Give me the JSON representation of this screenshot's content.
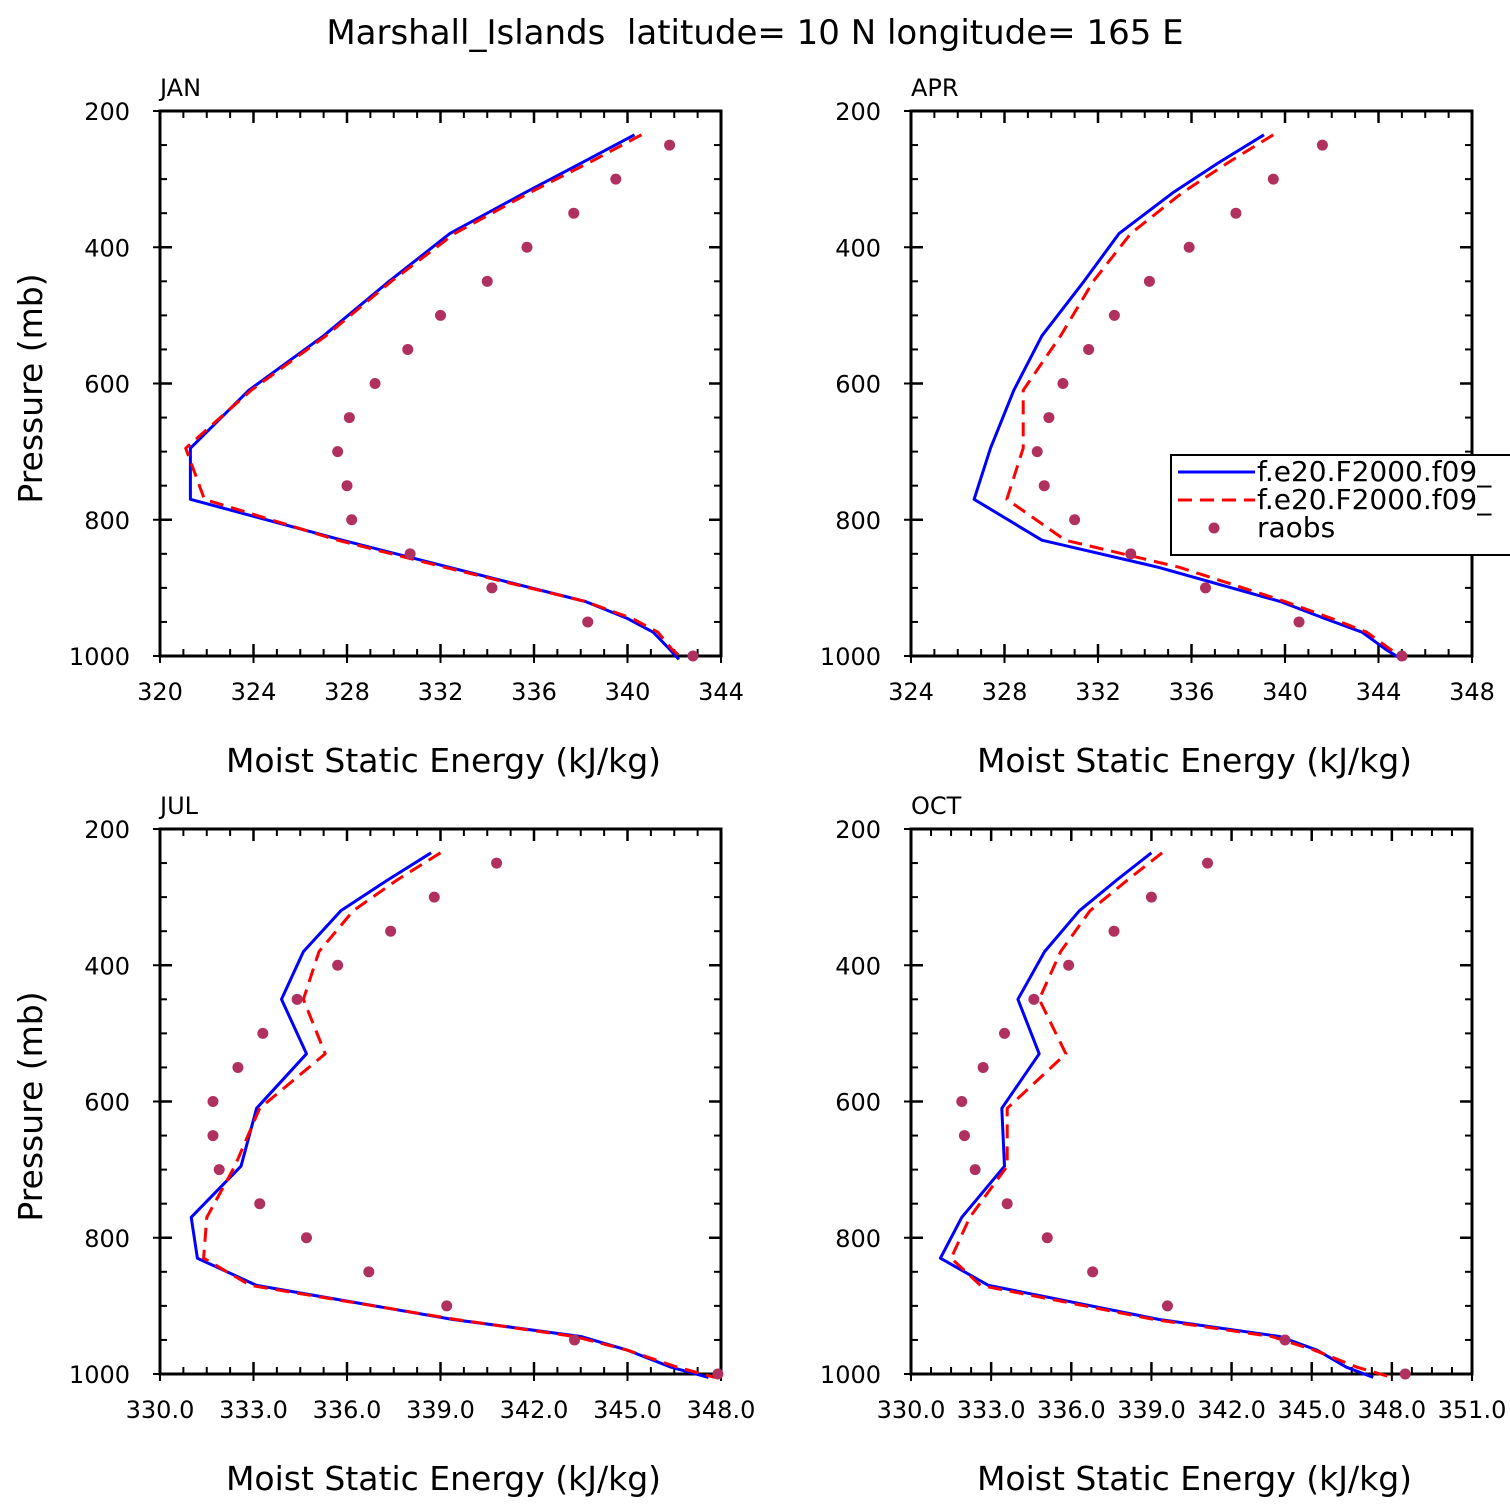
{
  "title": "Marshall_Islands  latitude= 10 N longitude= 165 E",
  "colors": {
    "model1": "#0000ff",
    "model2": "#ff0000",
    "raobs": "#b03060",
    "axis": "#000000"
  },
  "legend": {
    "placement": "right-middle of APR panel",
    "entries": [
      {
        "label": "f.e20.F2000.f09_",
        "style": "solid",
        "color": "#0000ff"
      },
      {
        "label": "f.e20.F2000.f09_",
        "style": "dashed",
        "color": "#ff0000"
      },
      {
        "label": "raobs",
        "style": "dots",
        "color": "#b03060"
      }
    ]
  },
  "chart_data": [
    {
      "type": "line",
      "panel": "JAN",
      "month": "JAN",
      "xlabel": "Moist Static Energy (kJ/kg)",
      "ylabel": "Pressure (mb)",
      "xlim": [
        320,
        344
      ],
      "ylim": [
        200,
        1000
      ],
      "y_reversed": true,
      "xticks": [
        "320",
        "324",
        "328",
        "332",
        "336",
        "340",
        "344"
      ],
      "yticks": [
        "200",
        "400",
        "600",
        "800",
        "1000"
      ],
      "model_levels": [
        235,
        275,
        320,
        380,
        450,
        530,
        610,
        695,
        770,
        830,
        870,
        920,
        945,
        965,
        990,
        1005
      ],
      "series": [
        {
          "name": "model 1 (solid)",
          "values": [
            340.3,
            338.1,
            335.6,
            332.4,
            329.8,
            327.0,
            323.8,
            321.3,
            321.3,
            327.8,
            332.4,
            338.2,
            340.0,
            341.1,
            341.8,
            342.2
          ]
        },
        {
          "name": "model 2 (dashed)",
          "values": [
            340.6,
            338.4,
            335.8,
            332.6,
            329.9,
            327.1,
            323.9,
            321.1,
            321.9,
            327.6,
            332.2,
            338.2,
            340.2,
            341.3,
            341.9,
            342.4
          ]
        }
      ],
      "raobs": {
        "pressure": [
          250,
          300,
          350,
          400,
          450,
          500,
          550,
          600,
          650,
          700,
          750,
          800,
          850,
          900,
          950,
          1000
        ],
        "values": [
          341.8,
          339.5,
          337.7,
          335.7,
          334.0,
          332.0,
          330.6,
          329.2,
          328.1,
          327.6,
          328.0,
          328.2,
          330.7,
          334.2,
          338.3,
          342.8
        ]
      }
    },
    {
      "type": "line",
      "panel": "APR",
      "month": "APR",
      "xlabel": "Moist Static Energy (kJ/kg)",
      "ylabel": "",
      "xlim": [
        324,
        348
      ],
      "ylim": [
        200,
        1000
      ],
      "y_reversed": true,
      "xticks": [
        "324",
        "328",
        "332",
        "336",
        "340",
        "344",
        "348"
      ],
      "yticks": [
        "200",
        "400",
        "600",
        "800",
        "1000"
      ],
      "model_levels": [
        235,
        275,
        320,
        380,
        450,
        530,
        610,
        695,
        770,
        830,
        870,
        920,
        945,
        965,
        990,
        1005
      ],
      "series": [
        {
          "name": "model 1 (solid)",
          "values": [
            339.1,
            337.2,
            335.2,
            332.9,
            331.4,
            329.6,
            328.4,
            327.4,
            326.7,
            329.6,
            334.6,
            339.8,
            341.7,
            343.3,
            344.3,
            345.0
          ]
        },
        {
          "name": "model 2 (dashed)",
          "values": [
            339.5,
            337.6,
            335.6,
            333.4,
            331.8,
            330.4,
            328.8,
            328.8,
            328.1,
            330.6,
            335.5,
            340.0,
            342.0,
            343.5,
            344.5,
            345.2
          ]
        }
      ],
      "raobs": {
        "pressure": [
          250,
          300,
          350,
          400,
          450,
          500,
          550,
          600,
          650,
          700,
          750,
          800,
          850,
          900,
          950,
          1000
        ],
        "values": [
          341.6,
          339.5,
          337.9,
          335.9,
          334.2,
          332.7,
          331.6,
          330.5,
          329.9,
          329.4,
          329.7,
          331.0,
          333.4,
          336.6,
          340.6,
          345.0
        ]
      }
    },
    {
      "type": "line",
      "panel": "JUL",
      "month": "JUL",
      "xlabel": "Moist Static Energy (kJ/kg)",
      "ylabel": "Pressure (mb)",
      "xlim": [
        330.0,
        348.0
      ],
      "ylim": [
        200,
        1000
      ],
      "y_reversed": true,
      "xticks": [
        "330.0",
        "333.0",
        "336.0",
        "339.0",
        "342.0",
        "345.0",
        "348.0"
      ],
      "yticks": [
        "200",
        "400",
        "600",
        "800",
        "1000"
      ],
      "model_levels": [
        235,
        275,
        320,
        380,
        450,
        530,
        610,
        695,
        770,
        830,
        870,
        920,
        945,
        965,
        990,
        1005
      ],
      "series": [
        {
          "name": "model 1 (solid)",
          "values": [
            338.7,
            337.3,
            335.8,
            334.6,
            333.9,
            334.7,
            333.1,
            332.6,
            331.0,
            331.2,
            333.1,
            339.4,
            343.5,
            345.0,
            346.4,
            347.6
          ]
        },
        {
          "name": "model 2 (dashed)",
          "values": [
            339.0,
            337.6,
            336.2,
            335.1,
            334.6,
            335.3,
            333.2,
            332.4,
            331.5,
            331.4,
            332.9,
            339.5,
            343.3,
            345.0,
            346.6,
            347.8
          ]
        }
      ],
      "raobs": {
        "pressure": [
          250,
          300,
          350,
          400,
          450,
          500,
          550,
          600,
          650,
          700,
          750,
          800,
          850,
          900,
          950,
          1000
        ],
        "values": [
          340.8,
          338.8,
          337.4,
          335.7,
          334.4,
          333.3,
          332.5,
          331.7,
          331.7,
          331.9,
          333.2,
          334.7,
          336.7,
          339.2,
          343.3,
          347.9
        ]
      }
    },
    {
      "type": "line",
      "panel": "OCT",
      "month": "OCT",
      "xlabel": "Moist Static Energy (kJ/kg)",
      "ylabel": "",
      "xlim": [
        330.0,
        351.0
      ],
      "ylim": [
        200,
        1000
      ],
      "y_reversed": true,
      "xticks": [
        "330.0",
        "333.0",
        "336.0",
        "339.0",
        "342.0",
        "345.0",
        "348.0",
        "351.0"
      ],
      "yticks": [
        "200",
        "400",
        "600",
        "800",
        "1000"
      ],
      "model_levels": [
        235,
        275,
        320,
        380,
        450,
        530,
        610,
        695,
        770,
        830,
        870,
        920,
        945,
        965,
        990,
        1005
      ],
      "series": [
        {
          "name": "model 1 (solid)",
          "values": [
            339.0,
            337.7,
            336.3,
            335.0,
            334.0,
            334.8,
            333.4,
            333.5,
            331.9,
            331.1,
            332.9,
            339.3,
            343.8,
            345.2,
            346.3,
            347.3
          ]
        },
        {
          "name": "model 2 (dashed)",
          "values": [
            339.4,
            338.1,
            336.7,
            335.6,
            334.8,
            335.8,
            333.6,
            333.6,
            332.2,
            331.5,
            332.6,
            339.1,
            343.5,
            345.1,
            346.7,
            348.0
          ]
        }
      ],
      "raobs": {
        "pressure": [
          250,
          300,
          350,
          400,
          450,
          500,
          550,
          600,
          650,
          700,
          750,
          800,
          850,
          900,
          950,
          1000
        ],
        "values": [
          341.1,
          339.0,
          337.6,
          335.9,
          334.6,
          333.5,
          332.7,
          331.9,
          332.0,
          332.4,
          333.6,
          335.1,
          336.8,
          339.6,
          344.0,
          348.5
        ]
      }
    }
  ]
}
